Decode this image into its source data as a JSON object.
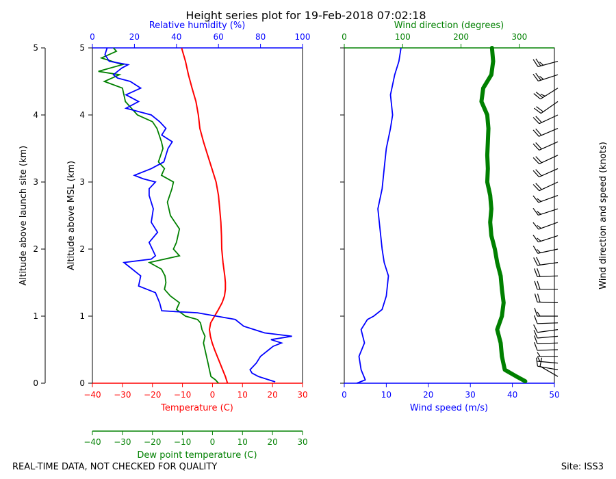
{
  "chart_data": [
    {
      "type": "line",
      "title": "Height series plot for 19-Feb-2018 07:02:18",
      "ylabel_left": "Altitude above launch site (km)",
      "ylabel_inner": "Altitude above MSL (km)",
      "xlabel_temperature": "Temperature (C)",
      "xlabel_dewpoint": "Dew point temperature (C)",
      "xlabel_rh": "Relative humidity (%)",
      "xlim_temperature": [
        -40,
        30
      ],
      "xlim_rh": [
        0,
        100
      ],
      "ylim": [
        0,
        5
      ],
      "xticks_temperature": [
        "−40",
        "−30",
        "−20",
        "−10",
        "0",
        "10",
        "20",
        "30"
      ],
      "xticks_rh": [
        "0",
        "20",
        "40",
        "60",
        "80",
        "100"
      ],
      "yticks": [
        "0",
        "1",
        "2",
        "3",
        "4",
        "5"
      ],
      "series": [
        {
          "name": "Temperature",
          "color": "#ff0000",
          "points": [
            [
              5.0,
              0.0
            ],
            [
              4.3,
              0.1
            ],
            [
              3.4,
              0.2
            ],
            [
              2.5,
              0.3
            ],
            [
              1.6,
              0.4
            ],
            [
              0.7,
              0.5
            ],
            [
              -0.1,
              0.6
            ],
            [
              -0.7,
              0.7
            ],
            [
              -1.0,
              0.8
            ],
            [
              -0.6,
              0.9
            ],
            [
              0.7,
              1.0
            ],
            [
              2.0,
              1.1
            ],
            [
              3.2,
              1.2
            ],
            [
              4.0,
              1.3
            ],
            [
              4.3,
              1.4
            ],
            [
              4.3,
              1.5
            ],
            [
              4.1,
              1.6
            ],
            [
              3.8,
              1.7
            ],
            [
              3.5,
              1.8
            ],
            [
              3.3,
              1.9
            ],
            [
              3.1,
              2.0
            ],
            [
              3.0,
              2.2
            ],
            [
              2.8,
              2.4
            ],
            [
              2.4,
              2.6
            ],
            [
              2.0,
              2.8
            ],
            [
              1.2,
              3.0
            ],
            [
              -0.2,
              3.2
            ],
            [
              -1.6,
              3.4
            ],
            [
              -3.0,
              3.6
            ],
            [
              -4.2,
              3.8
            ],
            [
              -4.7,
              4.0
            ],
            [
              -5.5,
              4.2
            ],
            [
              -6.8,
              4.4
            ],
            [
              -8.0,
              4.6
            ],
            [
              -9.0,
              4.8
            ],
            [
              -10.3,
              5.0
            ]
          ]
        },
        {
          "name": "Dew point temperature",
          "color": "#008000",
          "points": [
            [
              2.0,
              0.0
            ],
            [
              1.0,
              0.05
            ],
            [
              -0.5,
              0.1
            ],
            [
              -1.0,
              0.2
            ],
            [
              -1.5,
              0.3
            ],
            [
              -2.0,
              0.4
            ],
            [
              -2.5,
              0.5
            ],
            [
              -3.0,
              0.6
            ],
            [
              -2.5,
              0.7
            ],
            [
              -3.5,
              0.8
            ],
            [
              -4.0,
              0.9
            ],
            [
              -5.0,
              0.95
            ],
            [
              -9.0,
              1.0
            ],
            [
              -12.0,
              1.1
            ],
            [
              -11.0,
              1.2
            ],
            [
              -14.0,
              1.3
            ],
            [
              -16.0,
              1.4
            ],
            [
              -15.5,
              1.5
            ],
            [
              -15.8,
              1.6
            ],
            [
              -17.0,
              1.7
            ],
            [
              -21.0,
              1.8
            ],
            [
              -11.0,
              1.9
            ],
            [
              -13.0,
              2.0
            ],
            [
              -12.0,
              2.1
            ],
            [
              -11.0,
              2.3
            ],
            [
              -14.0,
              2.5
            ],
            [
              -15.0,
              2.7
            ],
            [
              -13.5,
              2.9
            ],
            [
              -13.0,
              3.0
            ],
            [
              -17.0,
              3.1
            ],
            [
              -16.0,
              3.2
            ],
            [
              -18.0,
              3.3
            ],
            [
              -16.5,
              3.5
            ],
            [
              -17.0,
              3.6
            ],
            [
              -18.5,
              3.8
            ],
            [
              -20.0,
              3.9
            ],
            [
              -25.0,
              4.0
            ],
            [
              -29.0,
              4.2
            ],
            [
              -30.0,
              4.4
            ],
            [
              -36.0,
              4.5
            ],
            [
              -31.0,
              4.6
            ],
            [
              -38.0,
              4.65
            ],
            [
              -30.0,
              4.75
            ],
            [
              -37.0,
              4.85
            ],
            [
              -32.0,
              4.95
            ],
            [
              -33.0,
              5.0
            ]
          ]
        },
        {
          "name": "Relative humidity",
          "color": "#0000ff",
          "points": [
            [
              87,
              0.02
            ],
            [
              84,
              0.05
            ],
            [
              79,
              0.1
            ],
            [
              76,
              0.15
            ],
            [
              75,
              0.2
            ],
            [
              78,
              0.3
            ],
            [
              80,
              0.4
            ],
            [
              82,
              0.45
            ],
            [
              84,
              0.5
            ],
            [
              86,
              0.55
            ],
            [
              90,
              0.6
            ],
            [
              85,
              0.65
            ],
            [
              95,
              0.7
            ],
            [
              82,
              0.75
            ],
            [
              72,
              0.85
            ],
            [
              68,
              0.95
            ],
            [
              50,
              1.05
            ],
            [
              33,
              1.08
            ],
            [
              32,
              1.2
            ],
            [
              30,
              1.35
            ],
            [
              22,
              1.45
            ],
            [
              23,
              1.6
            ],
            [
              17,
              1.75
            ],
            [
              15,
              1.8
            ],
            [
              28,
              1.85
            ],
            [
              30,
              1.9
            ],
            [
              27,
              2.1
            ],
            [
              31,
              2.25
            ],
            [
              28,
              2.4
            ],
            [
              29,
              2.6
            ],
            [
              27,
              2.8
            ],
            [
              27,
              2.9
            ],
            [
              30,
              3.0
            ],
            [
              24,
              3.05
            ],
            [
              20,
              3.1
            ],
            [
              28,
              3.2
            ],
            [
              34,
              3.3
            ],
            [
              36,
              3.5
            ],
            [
              38,
              3.6
            ],
            [
              33,
              3.7
            ],
            [
              35,
              3.8
            ],
            [
              32,
              3.9
            ],
            [
              28,
              4.0
            ],
            [
              16,
              4.1
            ],
            [
              22,
              4.2
            ],
            [
              16,
              4.3
            ],
            [
              23,
              4.4
            ],
            [
              18,
              4.5
            ],
            [
              12,
              4.55
            ],
            [
              10,
              4.6
            ],
            [
              14,
              4.7
            ],
            [
              17,
              4.75
            ],
            [
              8,
              4.8
            ],
            [
              6,
              4.9
            ],
            [
              7,
              5.0
            ]
          ]
        }
      ]
    },
    {
      "type": "line",
      "xlabel_speed": "Wind speed (m/s)",
      "xlabel_direction": "Wind direction (degrees)",
      "ylabel_right": "Wind direction and speed (knots)",
      "xlim_speed": [
        0,
        50
      ],
      "xlim_direction": [
        0,
        360
      ],
      "ylim": [
        0,
        5
      ],
      "xticks_speed": [
        "0",
        "10",
        "20",
        "30",
        "40",
        "50"
      ],
      "xticks_direction": [
        "0",
        "100",
        "200",
        "300"
      ],
      "series": [
        {
          "name": "Wind speed",
          "color": "#0000ff",
          "points": [
            [
              3.0,
              0.0
            ],
            [
              5.0,
              0.05
            ],
            [
              4.0,
              0.2
            ],
            [
              3.5,
              0.4
            ],
            [
              4.8,
              0.6
            ],
            [
              4.0,
              0.8
            ],
            [
              5.5,
              0.95
            ],
            [
              7.0,
              1.0
            ],
            [
              9.0,
              1.1
            ],
            [
              10.0,
              1.3
            ],
            [
              10.5,
              1.6
            ],
            [
              9.5,
              1.8
            ],
            [
              9.0,
              2.0
            ],
            [
              8.5,
              2.3
            ],
            [
              8.0,
              2.6
            ],
            [
              9.0,
              2.9
            ],
            [
              9.5,
              3.2
            ],
            [
              10.0,
              3.5
            ],
            [
              11.0,
              3.8
            ],
            [
              11.5,
              4.0
            ],
            [
              11.0,
              4.3
            ],
            [
              12.0,
              4.6
            ],
            [
              13.0,
              4.8
            ],
            [
              13.5,
              5.0
            ]
          ]
        },
        {
          "name": "Wind direction",
          "color": "#008000",
          "points": [
            [
              310,
              0.03
            ],
            [
              295,
              0.1
            ],
            [
              275,
              0.2
            ],
            [
              270,
              0.4
            ],
            [
              268,
              0.6
            ],
            [
              262,
              0.8
            ],
            [
              270,
              1.0
            ],
            [
              273,
              1.2
            ],
            [
              270,
              1.4
            ],
            [
              268,
              1.6
            ],
            [
              262,
              1.8
            ],
            [
              258,
              2.0
            ],
            [
              252,
              2.2
            ],
            [
              250,
              2.4
            ],
            [
              252,
              2.6
            ],
            [
              250,
              2.8
            ],
            [
              245,
              3.0
            ],
            [
              246,
              3.2
            ],
            [
              245,
              3.4
            ],
            [
              246,
              3.6
            ],
            [
              247,
              3.8
            ],
            [
              245,
              4.0
            ],
            [
              235,
              4.2
            ],
            [
              238,
              4.4
            ],
            [
              252,
              4.6
            ],
            [
              255,
              4.8
            ],
            [
              253,
              5.0
            ]
          ]
        }
      ],
      "barbs": [
        {
          "alt": 0.1,
          "dir": 300,
          "kt": 8
        },
        {
          "alt": 0.2,
          "dir": 280,
          "kt": 8
        },
        {
          "alt": 0.3,
          "dir": 275,
          "kt": 7
        },
        {
          "alt": 0.4,
          "dir": 270,
          "kt": 7
        },
        {
          "alt": 0.5,
          "dir": 268,
          "kt": 8
        },
        {
          "alt": 0.6,
          "dir": 268,
          "kt": 9
        },
        {
          "alt": 0.7,
          "dir": 265,
          "kt": 8
        },
        {
          "alt": 0.8,
          "dir": 262,
          "kt": 8
        },
        {
          "alt": 0.9,
          "dir": 268,
          "kt": 10
        },
        {
          "alt": 1.0,
          "dir": 270,
          "kt": 14
        },
        {
          "alt": 1.2,
          "dir": 272,
          "kt": 19
        },
        {
          "alt": 1.4,
          "dir": 270,
          "kt": 20
        },
        {
          "alt": 1.6,
          "dir": 268,
          "kt": 20
        },
        {
          "alt": 1.8,
          "dir": 262,
          "kt": 18
        },
        {
          "alt": 2.0,
          "dir": 258,
          "kt": 17
        },
        {
          "alt": 2.2,
          "dir": 252,
          "kt": 17
        },
        {
          "alt": 2.4,
          "dir": 250,
          "kt": 16
        },
        {
          "alt": 2.6,
          "dir": 252,
          "kt": 16
        },
        {
          "alt": 2.8,
          "dir": 250,
          "kt": 17
        },
        {
          "alt": 3.0,
          "dir": 245,
          "kt": 18
        },
        {
          "alt": 3.2,
          "dir": 246,
          "kt": 18
        },
        {
          "alt": 3.4,
          "dir": 245,
          "kt": 19
        },
        {
          "alt": 3.6,
          "dir": 246,
          "kt": 20
        },
        {
          "alt": 3.8,
          "dir": 247,
          "kt": 21
        },
        {
          "alt": 4.0,
          "dir": 245,
          "kt": 22
        },
        {
          "alt": 4.2,
          "dir": 235,
          "kt": 22
        },
        {
          "alt": 4.4,
          "dir": 238,
          "kt": 23
        },
        {
          "alt": 4.6,
          "dir": 252,
          "kt": 24
        },
        {
          "alt": 4.8,
          "dir": 255,
          "kt": 26
        }
      ]
    }
  ],
  "footer": {
    "disclaimer": "REAL-TIME DATA, NOT CHECKED FOR QUALITY",
    "site": "Site: ISS3"
  }
}
